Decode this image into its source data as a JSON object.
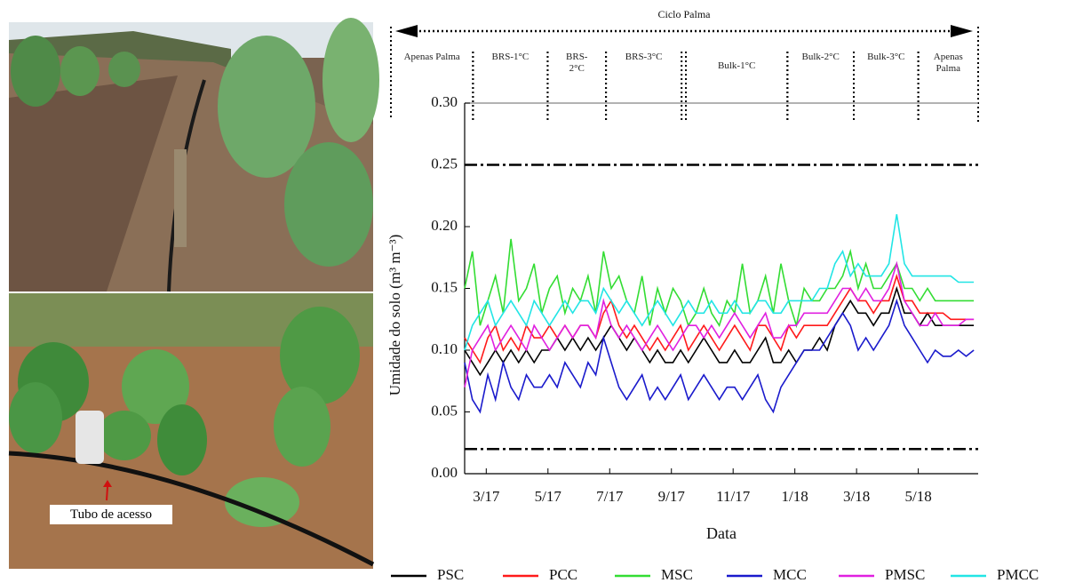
{
  "photo_label": "Tubo de acesso",
  "chart_data": {
    "type": "line",
    "header_title": "Ciclo Palma",
    "periods": [
      {
        "label": "Apenas Palma",
        "end": 2.57
      },
      {
        "label": "BRS-1°C",
        "start": 2.57,
        "end": 4.99
      },
      {
        "label": "BRS-2°C",
        "start": 4.99,
        "end": 6.88
      },
      {
        "label": "BRS-3°C",
        "start": 6.88,
        "end": 9.33
      },
      {
        "label": "Bulk-1°C",
        "start": 9.47,
        "end": 12.76
      },
      {
        "label": "Bulk-2°C",
        "start": 12.76,
        "end": 14.91
      },
      {
        "label": "Bulk-3°C",
        "start": 14.91,
        "end": 17.0
      },
      {
        "label": "Apenas Palma",
        "start": 17.0,
        "end": 18.94
      }
    ],
    "x_label": "Data",
    "y_label": "Umidade do solo (m³ m⁻³)",
    "xlim": [
      2.3,
      18.94
    ],
    "xticks": [
      {
        "value": 3,
        "label": "3/17"
      },
      {
        "value": 5,
        "label": "5/17"
      },
      {
        "value": 7,
        "label": "7/17"
      },
      {
        "value": 9,
        "label": "9/17"
      },
      {
        "value": 11,
        "label": "11/17"
      },
      {
        "value": 13,
        "label": "1/18"
      },
      {
        "value": 15,
        "label": "3/18"
      },
      {
        "value": 17,
        "label": "5/18"
      }
    ],
    "ylim": [
      0,
      0.3
    ],
    "yticks": [
      {
        "value": 0,
        "label": "0.00"
      },
      {
        "value": 0.05,
        "label": "0.05"
      },
      {
        "value": 0.1,
        "label": "0.10"
      },
      {
        "value": 0.15,
        "label": "0.15"
      },
      {
        "value": 0.2,
        "label": "0.20"
      },
      {
        "value": 0.25,
        "label": "0.25"
      },
      {
        "value": 0.3,
        "label": "0.30"
      }
    ],
    "reference_lines": [
      0.25,
      0.02
    ],
    "x": [
      2.3,
      2.55,
      2.8,
      3.05,
      3.3,
      3.55,
      3.8,
      4.05,
      4.3,
      4.55,
      4.8,
      5.05,
      5.3,
      5.55,
      5.8,
      6.05,
      6.3,
      6.55,
      6.8,
      7.05,
      7.3,
      7.55,
      7.8,
      8.05,
      8.3,
      8.55,
      8.8,
      9.05,
      9.3,
      9.55,
      9.8,
      10.05,
      10.3,
      10.55,
      10.8,
      11.05,
      11.3,
      11.55,
      11.8,
      12.05,
      12.3,
      12.55,
      12.8,
      13.05,
      13.3,
      13.55,
      13.8,
      14.05,
      14.3,
      14.55,
      14.8,
      15.05,
      15.3,
      15.55,
      15.8,
      16.05,
      16.3,
      16.55,
      16.8,
      17.05,
      17.3,
      17.55,
      17.8,
      18.05,
      18.3,
      18.55,
      18.8
    ],
    "series": [
      {
        "name": "PSC",
        "color": "#000000",
        "values": [
          0.1,
          0.09,
          0.08,
          0.09,
          0.1,
          0.09,
          0.1,
          0.09,
          0.1,
          0.09,
          0.1,
          0.1,
          0.11,
          0.1,
          0.11,
          0.1,
          0.11,
          0.1,
          0.11,
          0.12,
          0.11,
          0.1,
          0.11,
          0.1,
          0.09,
          0.1,
          0.09,
          0.09,
          0.1,
          0.09,
          0.1,
          0.11,
          0.1,
          0.09,
          0.09,
          0.1,
          0.09,
          0.09,
          0.1,
          0.11,
          0.09,
          0.09,
          0.1,
          0.09,
          0.1,
          0.1,
          0.11,
          0.1,
          0.12,
          0.13,
          0.14,
          0.13,
          0.13,
          0.12,
          0.13,
          0.13,
          0.15,
          0.13,
          0.13,
          0.12,
          0.13,
          0.12,
          0.12,
          0.12,
          0.12,
          0.12,
          0.12
        ]
      },
      {
        "name": "PCC",
        "color": "#ff1a1a",
        "values": [
          0.11,
          0.1,
          0.09,
          0.11,
          0.12,
          0.1,
          0.11,
          0.1,
          0.12,
          0.11,
          0.11,
          0.12,
          0.11,
          0.12,
          0.11,
          0.12,
          0.12,
          0.11,
          0.13,
          0.14,
          0.12,
          0.11,
          0.12,
          0.11,
          0.1,
          0.11,
          0.1,
          0.11,
          0.12,
          0.1,
          0.11,
          0.12,
          0.11,
          0.1,
          0.11,
          0.12,
          0.11,
          0.1,
          0.12,
          0.12,
          0.11,
          0.1,
          0.12,
          0.11,
          0.12,
          0.12,
          0.12,
          0.12,
          0.13,
          0.14,
          0.15,
          0.14,
          0.14,
          0.13,
          0.14,
          0.14,
          0.16,
          0.14,
          0.14,
          0.13,
          0.13,
          0.13,
          0.13,
          0.125,
          0.125,
          0.125,
          0.125
        ]
      },
      {
        "name": "MSC",
        "color": "#33dd33",
        "values": [
          0.15,
          0.18,
          0.12,
          0.14,
          0.16,
          0.13,
          0.19,
          0.14,
          0.15,
          0.17,
          0.13,
          0.15,
          0.16,
          0.13,
          0.15,
          0.14,
          0.16,
          0.13,
          0.18,
          0.15,
          0.16,
          0.14,
          0.13,
          0.16,
          0.12,
          0.15,
          0.13,
          0.15,
          0.14,
          0.12,
          0.13,
          0.15,
          0.13,
          0.12,
          0.14,
          0.13,
          0.17,
          0.13,
          0.14,
          0.16,
          0.13,
          0.17,
          0.14,
          0.12,
          0.15,
          0.14,
          0.14,
          0.15,
          0.15,
          0.16,
          0.18,
          0.15,
          0.17,
          0.15,
          0.15,
          0.16,
          0.17,
          0.15,
          0.15,
          0.14,
          0.15,
          0.14,
          0.14,
          0.14,
          0.14,
          0.14,
          0.14
        ]
      },
      {
        "name": "MCC",
        "color": "#1a1acc",
        "values": [
          0.09,
          0.06,
          0.05,
          0.08,
          0.06,
          0.09,
          0.07,
          0.06,
          0.08,
          0.07,
          0.07,
          0.08,
          0.07,
          0.09,
          0.08,
          0.07,
          0.09,
          0.08,
          0.11,
          0.09,
          0.07,
          0.06,
          0.07,
          0.08,
          0.06,
          0.07,
          0.06,
          0.07,
          0.08,
          0.06,
          0.07,
          0.08,
          0.07,
          0.06,
          0.07,
          0.07,
          0.06,
          0.07,
          0.08,
          0.06,
          0.05,
          0.07,
          0.08,
          0.09,
          0.1,
          0.1,
          0.1,
          0.11,
          0.12,
          0.13,
          0.12,
          0.1,
          0.11,
          0.1,
          0.11,
          0.12,
          0.14,
          0.12,
          0.11,
          0.1,
          0.09,
          0.1,
          0.095,
          0.095,
          0.1,
          0.095,
          0.1
        ]
      },
      {
        "name": "PMSC",
        "color": "#e020e0",
        "values": [
          0.07,
          0.1,
          0.11,
          0.12,
          0.1,
          0.11,
          0.12,
          0.11,
          0.1,
          0.12,
          0.11,
          0.1,
          0.11,
          0.12,
          0.11,
          0.12,
          0.12,
          0.11,
          0.14,
          0.12,
          0.11,
          0.12,
          0.11,
          0.1,
          0.11,
          0.12,
          0.11,
          0.1,
          0.11,
          0.12,
          0.12,
          0.11,
          0.12,
          0.11,
          0.12,
          0.13,
          0.12,
          0.11,
          0.12,
          0.13,
          0.11,
          0.11,
          0.12,
          0.12,
          0.13,
          0.13,
          0.13,
          0.13,
          0.14,
          0.15,
          0.15,
          0.14,
          0.15,
          0.14,
          0.14,
          0.15,
          0.17,
          0.14,
          0.13,
          0.12,
          0.12,
          0.13,
          0.12,
          0.12,
          0.12,
          0.125,
          0.125
        ]
      },
      {
        "name": "PMCC",
        "color": "#22e5e5",
        "values": [
          0.1,
          0.12,
          0.13,
          0.14,
          0.12,
          0.13,
          0.14,
          0.13,
          0.12,
          0.14,
          0.13,
          0.12,
          0.13,
          0.14,
          0.13,
          0.14,
          0.14,
          0.13,
          0.15,
          0.14,
          0.13,
          0.14,
          0.13,
          0.12,
          0.13,
          0.14,
          0.13,
          0.12,
          0.13,
          0.14,
          0.13,
          0.13,
          0.14,
          0.13,
          0.13,
          0.14,
          0.13,
          0.13,
          0.14,
          0.14,
          0.13,
          0.13,
          0.14,
          0.14,
          0.14,
          0.14,
          0.15,
          0.15,
          0.17,
          0.18,
          0.16,
          0.17,
          0.16,
          0.16,
          0.16,
          0.17,
          0.21,
          0.17,
          0.16,
          0.16,
          0.16,
          0.16,
          0.16,
          0.16,
          0.155,
          0.155,
          0.155
        ]
      }
    ]
  }
}
